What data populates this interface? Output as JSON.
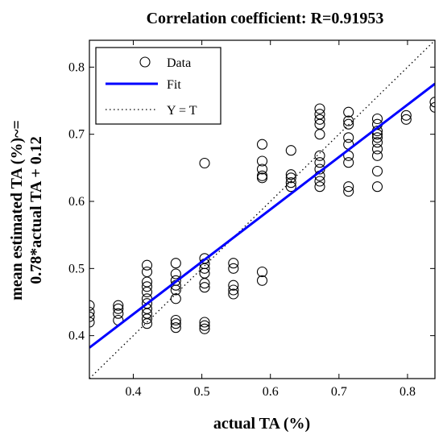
{
  "chart_data": {
    "type": "scatter",
    "title": "Correlation coefficient: R=0.91953",
    "xlabel": "actual TA (%)",
    "ylabel_line1": "mean estimated TA (%)~=",
    "ylabel_line2": "0.78*actual TA + 0.12",
    "xlim": [
      0.336,
      0.84
    ],
    "ylim": [
      0.336,
      0.84
    ],
    "xticks": [
      0.4,
      0.5,
      0.6,
      0.7,
      0.8
    ],
    "yticks": [
      0.4,
      0.5,
      0.6,
      0.7,
      0.8
    ],
    "xtick_labels": [
      "0.4",
      "0.5",
      "0.6",
      "0.7",
      "0.8"
    ],
    "ytick_labels": [
      "0.4",
      "0.5",
      "0.6",
      "0.7",
      "0.8"
    ],
    "grid": false,
    "legend_position": "top-left",
    "legend": [
      {
        "label": "Data",
        "style": "circle-marker",
        "color": "#000000"
      },
      {
        "label": "Fit",
        "style": "solid-line",
        "color": "#0000ff"
      },
      {
        "label": "Y = T",
        "style": "dotted-line",
        "color": "#000000"
      }
    ],
    "fit": {
      "slope": 0.78,
      "intercept": 0.12
    },
    "series": [
      {
        "name": "Data",
        "points": [
          [
            0.336,
            0.445
          ],
          [
            0.336,
            0.435
          ],
          [
            0.336,
            0.428
          ],
          [
            0.336,
            0.42
          ],
          [
            0.378,
            0.445
          ],
          [
            0.378,
            0.44
          ],
          [
            0.378,
            0.433
          ],
          [
            0.378,
            0.423
          ],
          [
            0.42,
            0.505
          ],
          [
            0.42,
            0.495
          ],
          [
            0.42,
            0.48
          ],
          [
            0.42,
            0.473
          ],
          [
            0.42,
            0.465
          ],
          [
            0.42,
            0.455
          ],
          [
            0.42,
            0.448
          ],
          [
            0.42,
            0.44
          ],
          [
            0.42,
            0.433
          ],
          [
            0.42,
            0.425
          ],
          [
            0.42,
            0.418
          ],
          [
            0.462,
            0.508
          ],
          [
            0.462,
            0.492
          ],
          [
            0.462,
            0.482
          ],
          [
            0.462,
            0.475
          ],
          [
            0.462,
            0.468
          ],
          [
            0.462,
            0.455
          ],
          [
            0.462,
            0.423
          ],
          [
            0.462,
            0.418
          ],
          [
            0.462,
            0.412
          ],
          [
            0.504,
            0.657
          ],
          [
            0.504,
            0.515
          ],
          [
            0.504,
            0.507
          ],
          [
            0.504,
            0.5
          ],
          [
            0.504,
            0.493
          ],
          [
            0.504,
            0.478
          ],
          [
            0.504,
            0.472
          ],
          [
            0.504,
            0.42
          ],
          [
            0.504,
            0.415
          ],
          [
            0.504,
            0.41
          ],
          [
            0.546,
            0.508
          ],
          [
            0.546,
            0.5
          ],
          [
            0.546,
            0.475
          ],
          [
            0.546,
            0.468
          ],
          [
            0.546,
            0.462
          ],
          [
            0.588,
            0.685
          ],
          [
            0.588,
            0.66
          ],
          [
            0.588,
            0.648
          ],
          [
            0.588,
            0.638
          ],
          [
            0.588,
            0.635
          ],
          [
            0.588,
            0.495
          ],
          [
            0.588,
            0.482
          ],
          [
            0.63,
            0.676
          ],
          [
            0.63,
            0.64
          ],
          [
            0.63,
            0.635
          ],
          [
            0.63,
            0.628
          ],
          [
            0.63,
            0.622
          ],
          [
            0.672,
            0.738
          ],
          [
            0.672,
            0.73
          ],
          [
            0.672,
            0.722
          ],
          [
            0.672,
            0.715
          ],
          [
            0.672,
            0.7
          ],
          [
            0.672,
            0.668
          ],
          [
            0.672,
            0.658
          ],
          [
            0.672,
            0.648
          ],
          [
            0.672,
            0.638
          ],
          [
            0.672,
            0.63
          ],
          [
            0.672,
            0.622
          ],
          [
            0.714,
            0.733
          ],
          [
            0.714,
            0.72
          ],
          [
            0.714,
            0.715
          ],
          [
            0.714,
            0.695
          ],
          [
            0.714,
            0.685
          ],
          [
            0.714,
            0.668
          ],
          [
            0.714,
            0.658
          ],
          [
            0.714,
            0.622
          ],
          [
            0.714,
            0.615
          ],
          [
            0.756,
            0.723
          ],
          [
            0.756,
            0.715
          ],
          [
            0.756,
            0.705
          ],
          [
            0.756,
            0.7
          ],
          [
            0.756,
            0.695
          ],
          [
            0.756,
            0.688
          ],
          [
            0.756,
            0.678
          ],
          [
            0.756,
            0.668
          ],
          [
            0.756,
            0.645
          ],
          [
            0.756,
            0.622
          ],
          [
            0.798,
            0.728
          ],
          [
            0.798,
            0.722
          ],
          [
            0.84,
            0.748
          ],
          [
            0.84,
            0.74
          ]
        ]
      }
    ]
  }
}
